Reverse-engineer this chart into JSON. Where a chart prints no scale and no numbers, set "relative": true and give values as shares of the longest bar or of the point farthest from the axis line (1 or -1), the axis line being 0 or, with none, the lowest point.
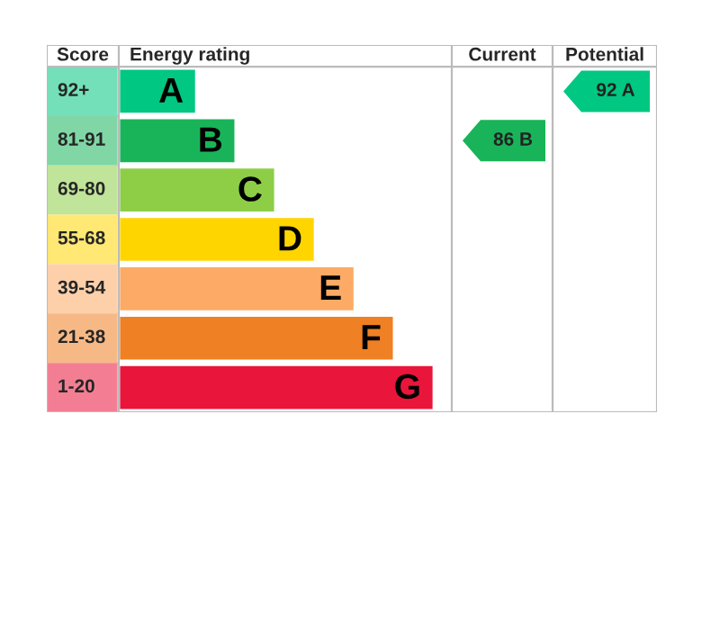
{
  "chart_data": {
    "type": "bar",
    "orientation": "horizontal",
    "relative": true,
    "categories": [
      "A",
      "B",
      "C",
      "D",
      "E",
      "F",
      "G"
    ],
    "values": [
      0.246,
      0.371,
      0.497,
      0.623,
      0.749,
      0.874,
      1.0
    ],
    "colors": [
      "#00c781",
      "#19b459",
      "#8dce46",
      "#ffd500",
      "#fcaa65",
      "#ef8023",
      "#e9153b"
    ],
    "annotations": [
      "Score",
      "Energy rating",
      "Current",
      "Potential",
      "92+",
      "81-91",
      "69-80",
      "55-68",
      "39-54",
      "21-38",
      "1-20",
      "86 B",
      "92 A"
    ]
  }
}
